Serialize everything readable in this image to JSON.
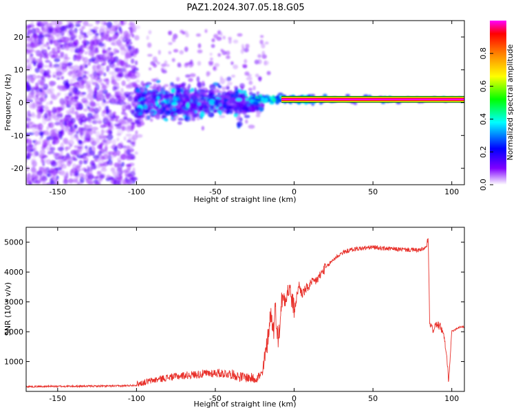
{
  "figure": {
    "title": "PAZ1.2024.307.05.18.G05"
  },
  "chart_data": [
    {
      "type": "heatmap",
      "xlabel": "Height of straight line (km)",
      "ylabel": "Frequency (Hz)",
      "xlim": [
        -170,
        108
      ],
      "ylim": [
        -25,
        25
      ],
      "x_ticks": [
        -150,
        -100,
        -50,
        0,
        50,
        100
      ],
      "y_ticks": [
        -20,
        -10,
        0,
        10,
        20
      ],
      "colorbar": {
        "label": "Normalized spectral amplitude",
        "range": [
          0,
          1
        ],
        "ticks": [
          "0.0",
          "0.2",
          "0.4",
          "0.6",
          "0.8"
        ],
        "colormap": [
          "#ffffff",
          "#8000ff",
          "#0000ff",
          "#00ffff",
          "#00ff00",
          "#ffff00",
          "#ff8000",
          "#ff0000",
          "#ff00ff"
        ]
      },
      "features": {
        "noise_region_x": [
          -170,
          -100
        ],
        "noise_freq_range": [
          -25,
          25
        ],
        "transition_x": [
          -100,
          -20
        ],
        "transition_freq_range": [
          -15,
          15
        ],
        "tone_x": [
          -20,
          108
        ],
        "tone_frequency_hz": 1
      }
    },
    {
      "type": "line",
      "xlabel": "Height of straight line (km)",
      "ylabel": "SNR (10 * v/v)",
      "xlim": [
        -170,
        108
      ],
      "ylim": [
        0,
        5500
      ],
      "x_ticks": [
        -150,
        -100,
        -50,
        0,
        50,
        100
      ],
      "y_ticks": [
        1000,
        2000,
        3000,
        4000,
        5000
      ],
      "color": "#e8302a",
      "series": [
        {
          "x": [
            -170,
            -140,
            -110,
            -100,
            -95,
            -90,
            -80,
            -70,
            -60,
            -50,
            -40,
            -35,
            -30,
            -25,
            -20,
            -17,
            -15,
            -13,
            -12,
            -10,
            -8,
            -5,
            -3,
            0,
            3,
            5,
            10,
            15,
            20,
            25,
            30,
            35,
            40,
            50,
            60,
            70,
            80,
            84,
            85,
            86,
            88,
            90,
            93,
            95,
            97,
            98,
            100,
            105,
            108
          ],
          "y": [
            150,
            160,
            170,
            200,
            260,
            320,
            420,
            480,
            520,
            560,
            520,
            430,
            400,
            360,
            500,
            1500,
            2500,
            1900,
            2700,
            1500,
            2900,
            3100,
            3300,
            2600,
            3500,
            3200,
            3500,
            3700,
            4100,
            4400,
            4600,
            4700,
            4750,
            4800,
            4750,
            4720,
            4700,
            4800,
            5100,
            2200,
            2000,
            2200,
            2100,
            1800,
            1000,
            300,
            2000,
            2150,
            2150
          ]
        }
      ]
    }
  ]
}
